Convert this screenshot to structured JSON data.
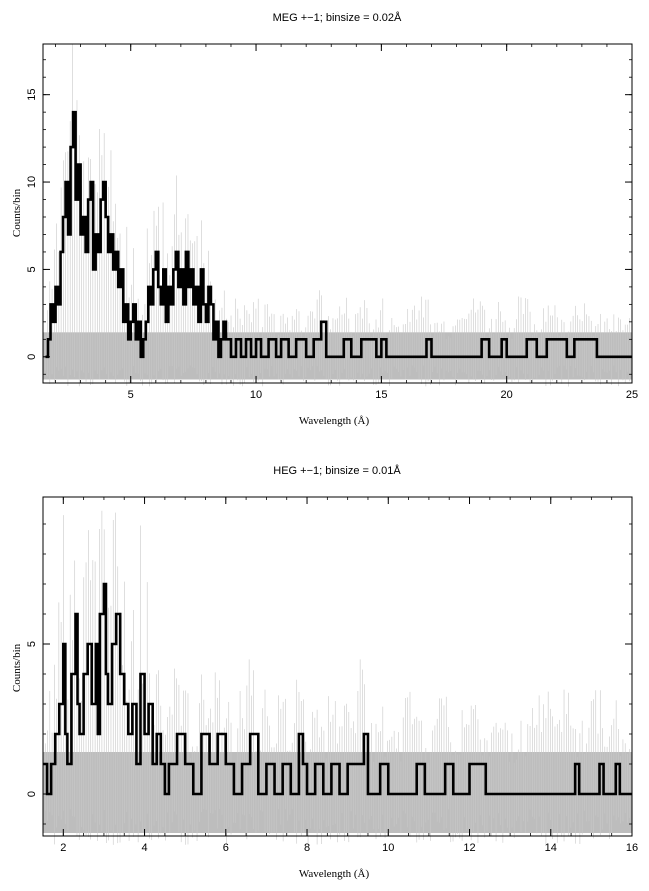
{
  "chart_data": [
    {
      "type": "line",
      "title": "MEG +−1; binsize = 0.02Å",
      "xlabel": "Wavelength (Å)",
      "ylabel": "Counts/bin",
      "xlim": [
        1.5,
        25
      ],
      "ylim": [
        -1.5,
        17.9
      ],
      "xticks": [
        5,
        10,
        15,
        20,
        25
      ],
      "yticks": [
        0,
        5,
        10,
        15
      ],
      "grid": false,
      "background_noise_band": [
        -1.3,
        1.4
      ],
      "series": [
        {
          "style": "histogram",
          "color": "#000000",
          "points": [
            [
              1.6,
              0
            ],
            [
              1.7,
              1
            ],
            [
              1.8,
              3
            ],
            [
              1.9,
              2
            ],
            [
              2.0,
              4
            ],
            [
              2.1,
              3
            ],
            [
              2.2,
              6
            ],
            [
              2.3,
              8
            ],
            [
              2.4,
              10
            ],
            [
              2.5,
              7
            ],
            [
              2.6,
              12
            ],
            [
              2.7,
              14
            ],
            [
              2.8,
              9
            ],
            [
              2.9,
              11
            ],
            [
              3.0,
              7
            ],
            [
              3.1,
              8
            ],
            [
              3.2,
              6
            ],
            [
              3.3,
              9
            ],
            [
              3.4,
              10
            ],
            [
              3.5,
              5
            ],
            [
              3.6,
              7
            ],
            [
              3.7,
              6
            ],
            [
              3.8,
              9
            ],
            [
              3.9,
              10
            ],
            [
              4.0,
              8
            ],
            [
              4.1,
              6
            ],
            [
              4.2,
              7
            ],
            [
              4.3,
              5
            ],
            [
              4.4,
              6
            ],
            [
              4.5,
              4
            ],
            [
              4.6,
              5
            ],
            [
              4.7,
              2
            ],
            [
              4.8,
              3
            ],
            [
              4.9,
              1
            ],
            [
              5.0,
              2
            ],
            [
              5.1,
              3
            ],
            [
              5.2,
              1
            ],
            [
              5.3,
              2
            ],
            [
              5.4,
              0
            ],
            [
              5.5,
              1
            ],
            [
              5.6,
              2
            ],
            [
              5.7,
              4
            ],
            [
              5.8,
              3
            ],
            [
              5.9,
              5
            ],
            [
              6.0,
              6
            ],
            [
              6.1,
              4
            ],
            [
              6.2,
              3
            ],
            [
              6.3,
              5
            ],
            [
              6.4,
              2
            ],
            [
              6.5,
              4
            ],
            [
              6.6,
              3
            ],
            [
              6.7,
              5
            ],
            [
              6.8,
              6
            ],
            [
              6.9,
              4
            ],
            [
              7.0,
              5
            ],
            [
              7.1,
              3
            ],
            [
              7.2,
              6
            ],
            [
              7.3,
              4
            ],
            [
              7.4,
              5
            ],
            [
              7.5,
              3
            ],
            [
              7.6,
              4
            ],
            [
              7.7,
              2
            ],
            [
              7.8,
              5
            ],
            [
              7.9,
              3
            ],
            [
              8.0,
              2
            ],
            [
              8.1,
              4
            ],
            [
              8.2,
              3
            ],
            [
              8.3,
              1
            ],
            [
              8.4,
              2
            ],
            [
              8.5,
              0
            ],
            [
              8.6,
              1
            ],
            [
              8.7,
              2
            ],
            [
              8.8,
              1
            ],
            [
              9.0,
              0
            ],
            [
              9.2,
              1
            ],
            [
              9.4,
              0
            ],
            [
              9.6,
              1
            ],
            [
              9.8,
              0
            ],
            [
              10.0,
              1
            ],
            [
              10.2,
              0
            ],
            [
              10.5,
              1
            ],
            [
              10.8,
              0
            ],
            [
              11.0,
              1
            ],
            [
              11.3,
              0
            ],
            [
              11.6,
              1
            ],
            [
              12.0,
              0
            ],
            [
              12.3,
              1
            ],
            [
              12.6,
              2
            ],
            [
              12.8,
              0
            ],
            [
              13.5,
              1
            ],
            [
              13.8,
              0
            ],
            [
              14.2,
              1
            ],
            [
              14.8,
              0
            ],
            [
              15.0,
              1
            ],
            [
              15.2,
              0
            ],
            [
              16.8,
              1
            ],
            [
              17.0,
              0
            ],
            [
              19.0,
              1
            ],
            [
              19.3,
              0
            ],
            [
              19.8,
              1
            ],
            [
              20.0,
              0
            ],
            [
              20.8,
              1
            ],
            [
              21.2,
              0
            ],
            [
              21.6,
              1
            ],
            [
              22.4,
              0
            ],
            [
              22.7,
              1
            ],
            [
              23.6,
              0
            ],
            [
              25.0,
              0
            ]
          ]
        }
      ]
    },
    {
      "type": "line",
      "title": "HEG +−1; binsize = 0.01Å",
      "xlabel": "Wavelength (Å)",
      "ylabel": "Counts/bin",
      "xlim": [
        1.5,
        16
      ],
      "ylim": [
        -1.4,
        9.9
      ],
      "xticks": [
        2,
        4,
        6,
        8,
        10,
        12,
        14,
        16
      ],
      "yticks": [
        0,
        5
      ],
      "grid": false,
      "background_noise_band": [
        -1.3,
        1.4
      ],
      "series": [
        {
          "style": "histogram",
          "color": "#000000",
          "points": [
            [
              1.5,
              1
            ],
            [
              1.6,
              0
            ],
            [
              1.7,
              1
            ],
            [
              1.8,
              2
            ],
            [
              1.9,
              3
            ],
            [
              2.0,
              5
            ],
            [
              2.05,
              2
            ],
            [
              2.1,
              1
            ],
            [
              2.2,
              4
            ],
            [
              2.3,
              6
            ],
            [
              2.35,
              3
            ],
            [
              2.4,
              2
            ],
            [
              2.5,
              4
            ],
            [
              2.6,
              5
            ],
            [
              2.7,
              3
            ],
            [
              2.8,
              5
            ],
            [
              2.85,
              2
            ],
            [
              2.9,
              6
            ],
            [
              3.0,
              7
            ],
            [
              3.05,
              4
            ],
            [
              3.1,
              3
            ],
            [
              3.2,
              5
            ],
            [
              3.3,
              6
            ],
            [
              3.4,
              4
            ],
            [
              3.5,
              3
            ],
            [
              3.6,
              2
            ],
            [
              3.7,
              3
            ],
            [
              3.8,
              1
            ],
            [
              3.9,
              4
            ],
            [
              4.0,
              2
            ],
            [
              4.1,
              3
            ],
            [
              4.2,
              1
            ],
            [
              4.3,
              2
            ],
            [
              4.4,
              1
            ],
            [
              4.5,
              0
            ],
            [
              4.6,
              1
            ],
            [
              4.8,
              2
            ],
            [
              5.0,
              1
            ],
            [
              5.2,
              0
            ],
            [
              5.4,
              2
            ],
            [
              5.6,
              1
            ],
            [
              5.8,
              2
            ],
            [
              6.0,
              1
            ],
            [
              6.2,
              0
            ],
            [
              6.4,
              1
            ],
            [
              6.6,
              2
            ],
            [
              6.8,
              0
            ],
            [
              7.0,
              1
            ],
            [
              7.2,
              0
            ],
            [
              7.4,
              1
            ],
            [
              7.6,
              0
            ],
            [
              7.8,
              2
            ],
            [
              7.9,
              1
            ],
            [
              8.0,
              0
            ],
            [
              8.2,
              1
            ],
            [
              8.4,
              0
            ],
            [
              8.6,
              1
            ],
            [
              8.8,
              0
            ],
            [
              9.0,
              1
            ],
            [
              9.4,
              2
            ],
            [
              9.5,
              0
            ],
            [
              9.8,
              1
            ],
            [
              10.0,
              0
            ],
            [
              10.7,
              1
            ],
            [
              10.9,
              0
            ],
            [
              11.4,
              1
            ],
            [
              11.6,
              0
            ],
            [
              12.0,
              1
            ],
            [
              12.4,
              0
            ],
            [
              14.6,
              1
            ],
            [
              14.7,
              0
            ],
            [
              15.2,
              1
            ],
            [
              15.3,
              0
            ],
            [
              15.6,
              1
            ],
            [
              15.7,
              0
            ],
            [
              16.0,
              0
            ]
          ]
        }
      ]
    }
  ]
}
